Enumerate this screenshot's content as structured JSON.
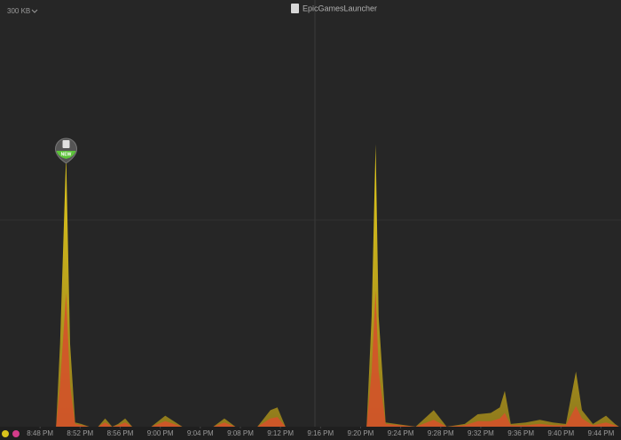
{
  "chart_data": {
    "type": "area",
    "title": "EpicGamesLauncher",
    "y_label": "300 KB",
    "ylim": [
      0,
      300
    ],
    "grid_lines": [
      150
    ],
    "xlim": [
      1244,
      1306
    ],
    "xticks": [
      {
        "value": 1248,
        "label": "8:48 PM"
      },
      {
        "value": 1252,
        "label": "8:52 PM"
      },
      {
        "value": 1256,
        "label": "8:56 PM"
      },
      {
        "value": 1260,
        "label": "9:00 PM"
      },
      {
        "value": 1264,
        "label": "9:04 PM"
      },
      {
        "value": 1268,
        "label": "9:08 PM"
      },
      {
        "value": 1272,
        "label": "9:12 PM"
      },
      {
        "value": 1276,
        "label": "9:16 PM"
      },
      {
        "value": 1280,
        "label": "9:20 PM"
      },
      {
        "value": 1284,
        "label": "9:24 PM"
      },
      {
        "value": 1288,
        "label": "9:28 PM"
      },
      {
        "value": 1292,
        "label": "9:32 PM"
      },
      {
        "value": 1296,
        "label": "9:36 PM"
      },
      {
        "value": 1300,
        "label": "9:40 PM"
      },
      {
        "value": 1304,
        "label": "9:44 PM"
      }
    ],
    "x": [
      1244.1,
      1247.6,
      1249.6,
      1250.0,
      1250.6,
      1251.0,
      1251.5,
      1252.1,
      1252.9,
      1253.8,
      1254.5,
      1255.2,
      1255.8,
      1256.5,
      1257.2,
      1259.1,
      1260.5,
      1262.2,
      1265.3,
      1266.4,
      1267.5,
      1269.7,
      1271.0,
      1271.7,
      1272.5,
      1279.4,
      1280.6,
      1281.1,
      1281.5,
      1281.8,
      1282.5,
      1285.5,
      1287.3,
      1288.6,
      1290.4,
      1291.7,
      1293.0,
      1293.9,
      1294.4,
      1295.0,
      1296.5,
      1297.9,
      1299.2,
      1300.5,
      1301.5,
      1302.1,
      1303.2,
      1304.5,
      1305.4,
      1305.8
    ],
    "series": [
      {
        "color": "#b79e1e",
        "values": [
          0,
          0,
          0,
          60,
          197,
          60,
          3,
          2,
          0,
          0,
          6,
          0,
          2,
          6,
          0,
          0,
          8,
          0,
          0,
          6,
          0,
          0,
          12,
          14,
          0,
          0,
          0,
          80,
          205,
          80,
          3,
          0,
          12,
          0,
          2,
          9,
          10,
          14,
          26,
          2,
          3,
          5,
          3,
          2,
          40,
          12,
          2,
          8,
          2,
          0
        ]
      },
      {
        "color": "#d4532a",
        "values": [
          0,
          0,
          0,
          30,
          97,
          30,
          2,
          1,
          0,
          0,
          3,
          0,
          1,
          3,
          0,
          0,
          4,
          0,
          0,
          3,
          0,
          0,
          6,
          7,
          0,
          0,
          0,
          40,
          99,
          40,
          2,
          0,
          5,
          0,
          1,
          4,
          4,
          6,
          10,
          1,
          1,
          2,
          1,
          1,
          15,
          6,
          1,
          3,
          1,
          0
        ]
      }
    ],
    "marker": {
      "x": 1250.6,
      "label": "NEW"
    }
  }
}
